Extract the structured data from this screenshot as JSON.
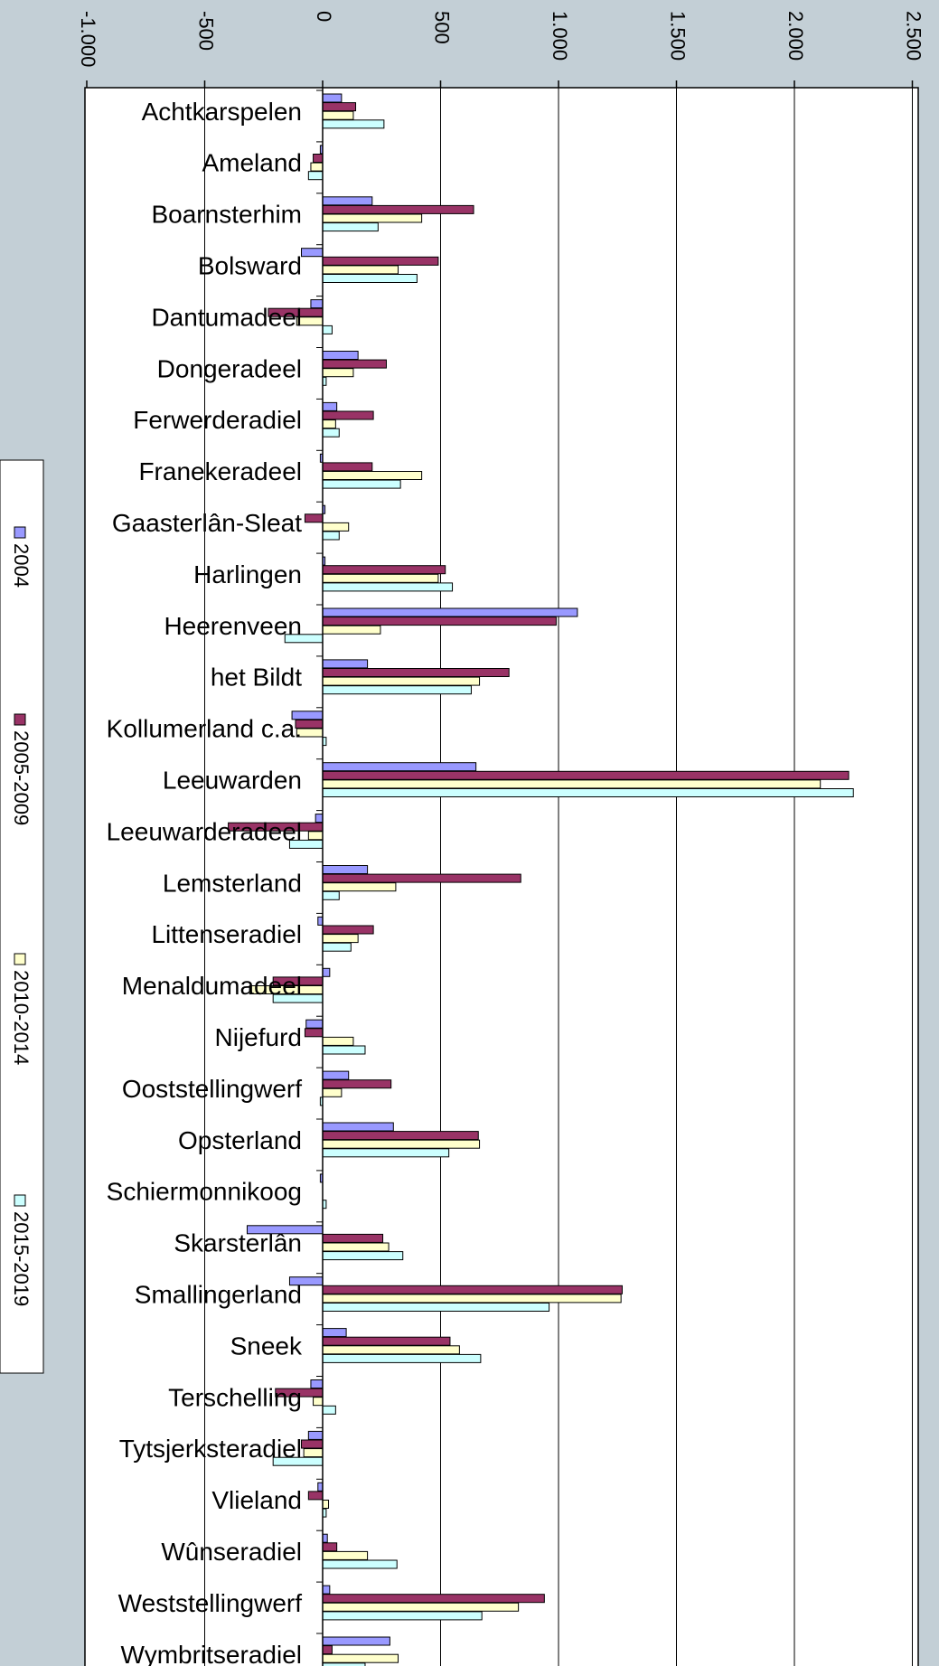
{
  "chart_data": {
    "type": "bar",
    "orientation": "horizontal",
    "display_rotation": "90deg clockwise",
    "title": "",
    "xlabel": "",
    "ylabel": "",
    "xlim": [
      -1000,
      2500
    ],
    "tick_values": [
      -1000,
      -500,
      0,
      500,
      1000,
      1500,
      2000,
      2500
    ],
    "tick_labels": [
      "-1.000",
      "-500",
      "0",
      "500",
      "1.000",
      "1.500",
      "2.000",
      "2.500"
    ],
    "grid": true,
    "legend_position": "left",
    "categories": [
      "Achtkarspelen",
      "Ameland",
      "Boarnsterhim",
      "Bolsward",
      "Dantumadeel",
      "Dongeradeel",
      "Ferwerderadiel",
      "Franekeradeel",
      "Gaasterlân-Sleat",
      "Harlingen",
      "Heerenveen",
      "het Bildt",
      "Kollumerland c.a.",
      "Leeuwarden",
      "Leeuwarderadeel",
      "Lemsterland",
      "Littenseradiel",
      "Menaldumadeel",
      "Nijefurd",
      "Ooststellingwerf",
      "Opsterland",
      "Schiermonnikoog",
      "Skarsterlân",
      "Smallingerland",
      "Sneek",
      "Terschelling",
      "Tytsjerksteradiel",
      "Vlieland",
      "Wûnseradiel",
      "Weststellingwerf",
      "Wymbritseradiel"
    ],
    "series": [
      {
        "name": "2004",
        "color": "#9999ff",
        "values": [
          80,
          -10,
          210,
          -90,
          -50,
          150,
          60,
          -10,
          10,
          10,
          1080,
          190,
          -130,
          650,
          -30,
          190,
          -20,
          30,
          -70,
          110,
          300,
          -10,
          -320,
          -140,
          100,
          -50,
          -60,
          -20,
          20,
          30,
          285
        ]
      },
      {
        "name": "2005-2009",
        "color": "#993366",
        "values": [
          140,
          -40,
          640,
          490,
          -230,
          270,
          215,
          210,
          -75,
          520,
          990,
          790,
          -115,
          2230,
          -400,
          840,
          215,
          -210,
          -75,
          290,
          660,
          0,
          255,
          1270,
          540,
          -200,
          -90,
          -60,
          60,
          940,
          40
        ]
      },
      {
        "name": "2010-2014",
        "color": "#ffffcc",
        "values": [
          130,
          -50,
          420,
          320,
          -110,
          130,
          55,
          420,
          110,
          490,
          245,
          665,
          -110,
          2110,
          -60,
          310,
          150,
          -310,
          130,
          80,
          665,
          0,
          280,
          1265,
          580,
          -40,
          -80,
          25,
          190,
          830,
          320
        ]
      },
      {
        "name": "2015-2019",
        "color": "#ccffff",
        "values": [
          260,
          -60,
          235,
          400,
          40,
          15,
          70,
          330,
          70,
          550,
          -160,
          630,
          15,
          2250,
          -140,
          70,
          120,
          -210,
          180,
          -10,
          535,
          15,
          340,
          960,
          670,
          55,
          -210,
          15,
          315,
          675,
          180
        ]
      }
    ]
  }
}
